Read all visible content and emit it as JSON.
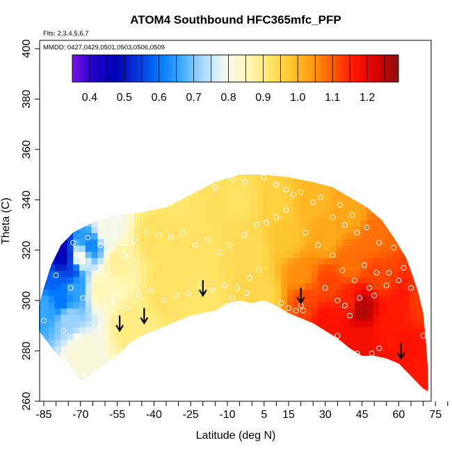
{
  "chart_data": {
    "type": "heatmap",
    "title": "ATOM4 Southbound HFC365mfc_PFP",
    "subtitle_flights": "Flts: 2,3,4,5,6,7",
    "subtitle_dates": "MMDD: 0427,0429,0501,0503,0506,0509",
    "xlabel": "Latitude (deg N)",
    "ylabel": "Theta (C)",
    "xlim": [
      -88,
      83
    ],
    "ylim": [
      260,
      405
    ],
    "x_ticks": [
      -85,
      -80,
      -75,
      -70,
      -65,
      -60,
      -55,
      -50,
      -45,
      -40,
      -35,
      -30,
      -25,
      -20,
      -15,
      -10,
      -5,
      0,
      5,
      10,
      15,
      20,
      25,
      30,
      35,
      40,
      45,
      50,
      55,
      60,
      65,
      70,
      75,
      80
    ],
    "x_tick_labels": [
      "-85",
      "",
      "",
      "-70",
      "",
      "",
      "-55",
      "",
      "",
      "-40",
      "",
      "",
      "-25",
      "",
      "",
      "-10",
      "",
      "",
      "5",
      "",
      "15",
      "",
      "",
      "30",
      "",
      "",
      "45",
      "",
      "",
      "60",
      "",
      "",
      "75",
      ""
    ],
    "y_ticks": [
      260,
      280,
      300,
      320,
      340,
      360,
      380,
      400
    ],
    "y_tick_labels": [
      "260",
      "280",
      "300",
      "320",
      "340",
      "360",
      "380",
      "400"
    ],
    "colorbar": {
      "min": 0.35,
      "max": 1.29,
      "ticks": [
        0.4,
        0.5,
        0.6,
        0.7,
        0.8,
        0.9,
        1.0,
        1.1,
        1.2
      ],
      "tick_labels": [
        "0.4",
        "0.5",
        "0.6",
        "0.7",
        "0.8",
        "0.9",
        "1.0",
        "1.1",
        "1.2"
      ],
      "colors": [
        "#7a12e8",
        "#1f00c8",
        "#0000b4",
        "#0a36d8",
        "#0078ff",
        "#3aaaff",
        "#a8d8ff",
        "#f4f8f0",
        "#fff8c0",
        "#ffe870",
        "#ffc830",
        "#ff9a10",
        "#ff5a00",
        "#ff1400",
        "#d80000",
        "#8c1010"
      ]
    },
    "domain_bottom_boundary": [
      [
        -87,
        288
      ],
      [
        -80,
        279
      ],
      [
        -75,
        275
      ],
      [
        -70,
        268
      ],
      [
        -65,
        271
      ],
      [
        -60,
        275
      ],
      [
        -55,
        278
      ],
      [
        -50,
        283
      ],
      [
        -45,
        286
      ],
      [
        -40,
        288
      ],
      [
        -35,
        290
      ],
      [
        -25,
        294
      ],
      [
        -15,
        296
      ],
      [
        -10,
        299
      ],
      [
        -5,
        300
      ],
      [
        0,
        299
      ],
      [
        5,
        300
      ],
      [
        10,
        298
      ],
      [
        15,
        295
      ],
      [
        20,
        293
      ],
      [
        25,
        291
      ],
      [
        30,
        288
      ],
      [
        35,
        285
      ],
      [
        40,
        281
      ],
      [
        45,
        278
      ],
      [
        50,
        278
      ],
      [
        55,
        277
      ],
      [
        60,
        275
      ],
      [
        65,
        270
      ],
      [
        70,
        265
      ],
      [
        72,
        264
      ]
    ],
    "domain_top_boundary": [
      [
        72,
        264
      ],
      [
        72,
        272
      ],
      [
        71,
        285
      ],
      [
        70,
        295
      ],
      [
        68,
        303
      ],
      [
        66,
        309
      ],
      [
        63,
        317
      ],
      [
        58,
        325
      ],
      [
        53,
        332
      ],
      [
        47,
        337
      ],
      [
        40,
        341
      ],
      [
        33,
        345
      ],
      [
        25,
        347
      ],
      [
        15,
        349
      ],
      [
        5,
        350
      ],
      [
        -5,
        350
      ],
      [
        -15,
        347
      ],
      [
        -25,
        342
      ],
      [
        -35,
        337
      ],
      [
        -45,
        335
      ],
      [
        -55,
        334
      ],
      [
        -65,
        331
      ],
      [
        -73,
        327
      ],
      [
        -78,
        322
      ],
      [
        -82,
        314
      ],
      [
        -85,
        305
      ],
      [
        -87,
        298
      ],
      [
        -87,
        288
      ]
    ],
    "field_anchors": [
      {
        "lat": -80,
        "theta": 322,
        "value": 0.42
      },
      {
        "lat": -77,
        "theta": 317,
        "value": 0.48
      },
      {
        "lat": -74,
        "theta": 312,
        "value": 0.55
      },
      {
        "lat": -82,
        "theta": 308,
        "value": 0.58
      },
      {
        "lat": -85,
        "theta": 298,
        "value": 0.66
      },
      {
        "lat": -78,
        "theta": 300,
        "value": 0.6
      },
      {
        "lat": -72,
        "theta": 305,
        "value": 0.65
      },
      {
        "lat": -75,
        "theta": 293,
        "value": 0.72
      },
      {
        "lat": -70,
        "theta": 280,
        "value": 0.82
      },
      {
        "lat": -70,
        "theta": 317,
        "value": 0.8
      },
      {
        "lat": -66,
        "theta": 322,
        "value": 0.62
      },
      {
        "lat": -60,
        "theta": 328,
        "value": 0.8
      },
      {
        "lat": -62,
        "theta": 305,
        "value": 0.86
      },
      {
        "lat": -55,
        "theta": 315,
        "value": 0.88
      },
      {
        "lat": -50,
        "theta": 290,
        "value": 0.9
      },
      {
        "lat": -40,
        "theta": 325,
        "value": 0.93
      },
      {
        "lat": -35,
        "theta": 305,
        "value": 0.93
      },
      {
        "lat": -20,
        "theta": 320,
        "value": 0.93
      },
      {
        "lat": -20,
        "theta": 300,
        "value": 0.92
      },
      {
        "lat": -5,
        "theta": 340,
        "value": 0.93
      },
      {
        "lat": 0,
        "theta": 318,
        "value": 0.94
      },
      {
        "lat": 5,
        "theta": 303,
        "value": 0.95
      },
      {
        "lat": 10,
        "theta": 340,
        "value": 0.96
      },
      {
        "lat": 15,
        "theta": 325,
        "value": 0.98
      },
      {
        "lat": 20,
        "theta": 310,
        "value": 1.05
      },
      {
        "lat": 22,
        "theta": 300,
        "value": 1.12
      },
      {
        "lat": 25,
        "theta": 340,
        "value": 1.0
      },
      {
        "lat": 30,
        "theta": 325,
        "value": 1.02
      },
      {
        "lat": 32,
        "theta": 307,
        "value": 1.12
      },
      {
        "lat": 30,
        "theta": 292,
        "value": 1.17
      },
      {
        "lat": 40,
        "theta": 335,
        "value": 1.02
      },
      {
        "lat": 40,
        "theta": 315,
        "value": 1.08
      },
      {
        "lat": 40,
        "theta": 300,
        "value": 1.15
      },
      {
        "lat": 45,
        "theta": 297,
        "value": 1.26
      },
      {
        "lat": 45,
        "theta": 285,
        "value": 1.18
      },
      {
        "lat": 50,
        "theta": 325,
        "value": 1.08
      },
      {
        "lat": 52,
        "theta": 310,
        "value": 1.12
      },
      {
        "lat": 55,
        "theta": 290,
        "value": 1.16
      },
      {
        "lat": 62,
        "theta": 300,
        "value": 1.16
      },
      {
        "lat": 65,
        "theta": 280,
        "value": 1.17
      },
      {
        "lat": 70,
        "theta": 275,
        "value": 1.16
      },
      {
        "lat": 68,
        "theta": 300,
        "value": 1.13
      }
    ],
    "sample_points": [
      [
        -83,
        321
      ],
      [
        -73,
        323
      ],
      [
        -67,
        325
      ],
      [
        -62,
        322
      ],
      [
        -58,
        320
      ],
      [
        -52,
        318
      ],
      [
        -48,
        324
      ],
      [
        -43,
        327
      ],
      [
        -38,
        326
      ],
      [
        -33,
        325
      ],
      [
        -28,
        327
      ],
      [
        -23,
        322
      ],
      [
        -18,
        324
      ],
      [
        -13,
        319
      ],
      [
        -9,
        322
      ],
      [
        -3,
        326
      ],
      [
        2,
        330
      ],
      [
        6,
        331
      ],
      [
        10,
        333
      ],
      [
        14,
        336
      ],
      [
        -80,
        310
      ],
      [
        -74,
        305
      ],
      [
        -69,
        301
      ],
      [
        -63,
        296
      ],
      [
        -57,
        300
      ],
      [
        -51,
        297
      ],
      [
        -46,
        302
      ],
      [
        -41,
        304
      ],
      [
        -36,
        300
      ],
      [
        -31,
        302
      ],
      [
        -26,
        303
      ],
      [
        -21,
        306
      ],
      [
        -16,
        304
      ],
      [
        -11,
        306
      ],
      [
        -6,
        305
      ],
      [
        -1,
        309
      ],
      [
        3,
        312
      ],
      [
        -85,
        292
      ],
      [
        -77,
        288
      ],
      [
        -71,
        286
      ],
      [
        -8,
        301
      ],
      [
        -2,
        303
      ],
      [
        12,
        299
      ],
      [
        15,
        297
      ],
      [
        18,
        296
      ],
      [
        20,
        298
      ],
      [
        21,
        296
      ],
      [
        30,
        305
      ],
      [
        35,
        300
      ],
      [
        38,
        298
      ],
      [
        40,
        294
      ],
      [
        44,
        301
      ],
      [
        48,
        305
      ],
      [
        50,
        302
      ],
      [
        55,
        306
      ],
      [
        60,
        308
      ],
      [
        65,
        305
      ],
      [
        22,
        327
      ],
      [
        27,
        322
      ],
      [
        33,
        318
      ],
      [
        37,
        312
      ],
      [
        42,
        308
      ],
      [
        46,
        314
      ],
      [
        51,
        311
      ],
      [
        56,
        311
      ],
      [
        62,
        313
      ],
      [
        68,
        310
      ],
      [
        25,
        339
      ],
      [
        28,
        341
      ],
      [
        33,
        333
      ],
      [
        38,
        330
      ],
      [
        43,
        327
      ],
      [
        47,
        329
      ],
      [
        52,
        323
      ],
      [
        58,
        321
      ],
      [
        62,
        328
      ],
      [
        68,
        326
      ],
      [
        30,
        284
      ],
      [
        35,
        286
      ],
      [
        43,
        279
      ],
      [
        49,
        279
      ],
      [
        52,
        281
      ],
      [
        70,
        286
      ],
      [
        17,
        342
      ],
      [
        20,
        343
      ],
      [
        -15,
        345
      ],
      [
        -8,
        348
      ],
      [
        -3,
        347
      ],
      [
        5,
        349
      ],
      [
        10,
        346
      ],
      [
        14,
        344
      ],
      [
        36,
        338
      ],
      [
        41,
        334
      ]
    ],
    "arrows": [
      {
        "lat": -54,
        "theta": 288
      },
      {
        "lat": -44,
        "theta": 291
      },
      {
        "lat": -20,
        "theta": 302
      },
      {
        "lat": 20,
        "theta": 299
      },
      {
        "lat": 61,
        "theta": 277
      }
    ]
  }
}
